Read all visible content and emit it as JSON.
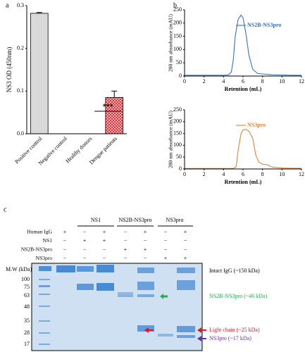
{
  "panel_labels": [
    "a",
    "b",
    "c"
  ],
  "chart_data": [
    {
      "type": "bar",
      "ylabel": "NS3 OD (450nm)",
      "categories": [
        "Positive control",
        "Negative control",
        "Healthy donors",
        "Dengue  patients"
      ],
      "values": [
        0.282,
        0,
        0,
        0.085
      ],
      "errors": [
        0.002,
        0,
        0,
        0.015
      ],
      "colors": [
        "#d9d9d9",
        "#d9d9d9",
        "#d9d9d9",
        "#e8323a"
      ],
      "hatch": [
        false,
        false,
        false,
        true
      ],
      "ylim": [
        0,
        0.3
      ],
      "yticks": [
        {
          "value": 0,
          "label": "0.0"
        },
        0.1,
        0.2,
        0.3
      ],
      "annotation": "***"
    },
    {
      "type": "line",
      "ylabel": "280 nm absorbance (mAU)",
      "xlabel": "Retention (mL)",
      "x": [
        0,
        1,
        2,
        3,
        4,
        4.5,
        4.8,
        5,
        5.2,
        5.5,
        5.8,
        6,
        6.3,
        6.6,
        7,
        7.5,
        8,
        9,
        10,
        11,
        12
      ],
      "series": [
        {
          "name": "NS2B-NS3pro",
          "color": "#3a6fc4",
          "values": [
            3,
            3,
            3,
            3,
            3,
            4,
            15,
            60,
            150,
            215,
            230,
            220,
            160,
            80,
            25,
            10,
            8,
            5,
            4,
            3,
            3
          ]
        }
      ],
      "xlim": [
        0,
        12
      ],
      "xticks": [
        0,
        2,
        4,
        6,
        8,
        10,
        12
      ],
      "ylim": [
        0,
        250
      ],
      "yticks": [
        0,
        50,
        100,
        150,
        200,
        250
      ]
    },
    {
      "type": "line",
      "ylabel": "280 nm absorbance (mAU)",
      "xlabel": "Retention (mL)",
      "x": [
        0,
        1,
        2,
        3,
        4,
        5,
        5.3,
        5.5,
        5.8,
        6,
        6.3,
        6.6,
        7,
        7.3,
        7.6,
        8,
        8.5,
        9,
        10,
        11,
        12
      ],
      "series": [
        {
          "name": "NS3pro",
          "color": "#e8823a",
          "values": [
            2,
            2,
            2,
            2,
            2,
            2,
            10,
            80,
            150,
            165,
            168,
            160,
            130,
            60,
            30,
            20,
            18,
            8,
            4,
            3,
            3
          ]
        }
      ],
      "xlim": [
        0,
        12
      ],
      "xticks": [
        0,
        2,
        4,
        6,
        8,
        10,
        12
      ],
      "ylim": [
        0,
        250
      ],
      "yticks": [
        0,
        50,
        100,
        150,
        200,
        250
      ]
    }
  ],
  "gel": {
    "groups": [
      "NS1",
      "NS2B-NS3pro",
      "NS3pro"
    ],
    "row_labels": [
      "Human IgG",
      "NS1",
      "NS2B-NS3pro",
      "NS3pro"
    ],
    "signs": [
      [
        "+",
        "−",
        "+",
        "−",
        "+",
        "−",
        "+"
      ],
      [
        "−",
        "+",
        "+",
        "−",
        "−",
        "−",
        "−"
      ],
      [
        "−",
        "−",
        "−",
        "+",
        "+",
        "−",
        "−"
      ],
      [
        "−",
        "−",
        "−",
        "−",
        "−",
        "+",
        "+"
      ]
    ],
    "mw_label": "M.W (kDa)",
    "markers": [
      "100",
      "75",
      "63",
      "48",
      "35",
      "28",
      "17"
    ],
    "annotations": [
      "Intact IgG (~150 kDa)",
      "NS2B-NS3pro  (~46 kDa)",
      "Light chain (~25 kDa)",
      "NS3pro (~17 kDa)"
    ]
  }
}
